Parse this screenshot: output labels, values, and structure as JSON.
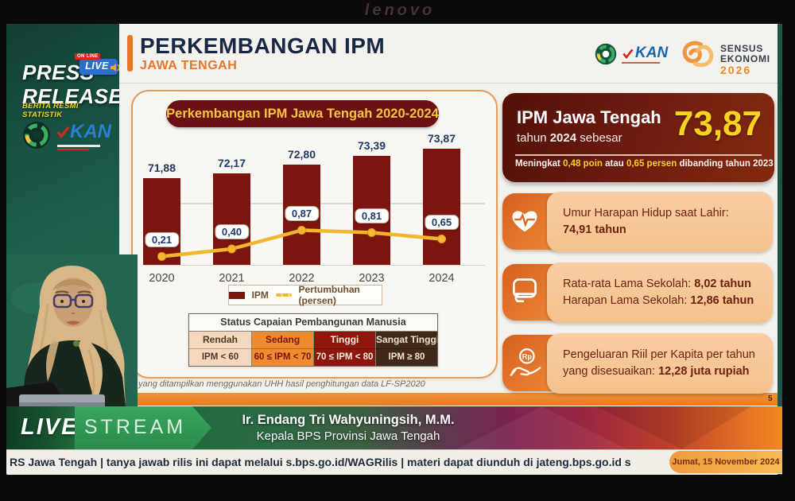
{
  "bezel": {
    "brand": "lenovo"
  },
  "sidebar": {
    "title_line1": "PRESS",
    "title_line2": "RELEASE",
    "subtitle": "BERITA RESMI STATISTIK",
    "live_online": "ON LINE",
    "live_label": "LIVE",
    "kan_label": "KAN"
  },
  "slide_header": {
    "title": "PERKEMBANGAN IPM",
    "subtitle": "JAWA TENGAH",
    "kan_label": "KAN",
    "sensus_line1": "SENSUS",
    "sensus_line2": "EKONOMI",
    "sensus_year": "2026"
  },
  "chart_data": {
    "type": "bar+line combo",
    "title": "Perkembangan IPM Jawa Tengah 2020-2024",
    "categories": [
      "2020",
      "2021",
      "2022",
      "2023",
      "2024"
    ],
    "series": [
      {
        "name": "IPM",
        "type": "bar",
        "color": "#7c150e",
        "values": [
          71.88,
          72.17,
          72.8,
          73.39,
          73.87
        ],
        "labels": [
          "71,88",
          "72,17",
          "72,80",
          "73,39",
          "73,87"
        ]
      },
      {
        "name": "Pertumbuhan (persen)",
        "type": "line",
        "color": "#f2b72e",
        "values": [
          0.21,
          0.4,
          0.87,
          0.81,
          0.65
        ],
        "labels": [
          "0,21",
          "0,40",
          "0,87",
          "0,81",
          "0,65"
        ]
      }
    ],
    "legend_position": "bottom",
    "grid": true,
    "axes_visible": false
  },
  "status_table": {
    "title": "Status Capaian Pembangunan Manusia",
    "columns": [
      {
        "label": "Rendah",
        "range": "IPM < 60",
        "bg": "#f3d8bd",
        "fg": "#4f3a2a"
      },
      {
        "label": "Sedang",
        "range": "60 ≤ IPM < 70",
        "bg": "#ee8b2e",
        "fg": "#7b1508"
      },
      {
        "label": "Tinggi",
        "range": "70 ≤ IPM < 80",
        "bg": "#8e170d",
        "fg": "#fbeedd"
      },
      {
        "label": "Sangat Tinggi",
        "range": "IPM ≥ 80",
        "bg": "#40291a",
        "fg": "#f3e2cd"
      }
    ]
  },
  "footnote": "yang ditampilkan menggunakan UHH hasil penghitungan data LF-SP2020",
  "summary_card": {
    "title": "IPM Jawa Tengah",
    "subtitle_segments": [
      [
        "tahun ",
        0
      ],
      [
        "2024",
        1
      ],
      [
        " sebesar",
        0
      ]
    ],
    "value": "73,87",
    "note_segments": [
      [
        "Meningkat ",
        0
      ],
      [
        "0,48 poin",
        1
      ],
      [
        " atau ",
        0
      ],
      [
        "0,65 persen",
        1
      ],
      [
        " dibanding tahun 2023",
        0
      ]
    ]
  },
  "info_cards": [
    {
      "icon": "heart-pulse-icon",
      "lines": [
        [
          [
            "Umur Harapan Hidup saat Lahir:",
            0
          ]
        ],
        [
          [
            "74,91 tahun",
            1
          ]
        ]
      ]
    },
    {
      "icon": "school-book-icon",
      "lines": [
        [
          [
            "Rata-rata Lama Sekolah: ",
            0
          ],
          [
            "8,02 tahun",
            1
          ]
        ],
        [
          [
            "Harapan Lama Sekolah: ",
            0
          ],
          [
            "12,86 tahun",
            1
          ]
        ]
      ]
    },
    {
      "icon": "rupiah-hand-icon",
      "lines": [
        [
          [
            "Pengeluaran Riil per Kapita per tahun",
            0
          ]
        ],
        [
          [
            "yang disesuaikan: ",
            0
          ],
          [
            "12,28 juta rupiah",
            1
          ]
        ]
      ]
    }
  ],
  "page_number": "5",
  "banner": {
    "live": "LIVE",
    "stream": "STREAM",
    "speaker_name": "Ir. Endang Tri Wahyuningsih, M.M.",
    "speaker_title": "Kepala BPS Provinsi Jawa Tengah"
  },
  "ticker": {
    "text": "RS Jawa Tengah  |  tanya jawab rilis ini dapat melalui s.bps.go.id/WAGRilis  |  materi dapat diunduh di jateng.bps.go.id s",
    "date": "Jumat, 15 November 2024"
  },
  "colors": {
    "accent_orange": "#e87722",
    "maroon": "#6c1113",
    "gold": "#f2b72e",
    "sidebar_teal": "#1a5a49",
    "live_green": "#2f9e57",
    "value_yellow": "#f6d321"
  }
}
